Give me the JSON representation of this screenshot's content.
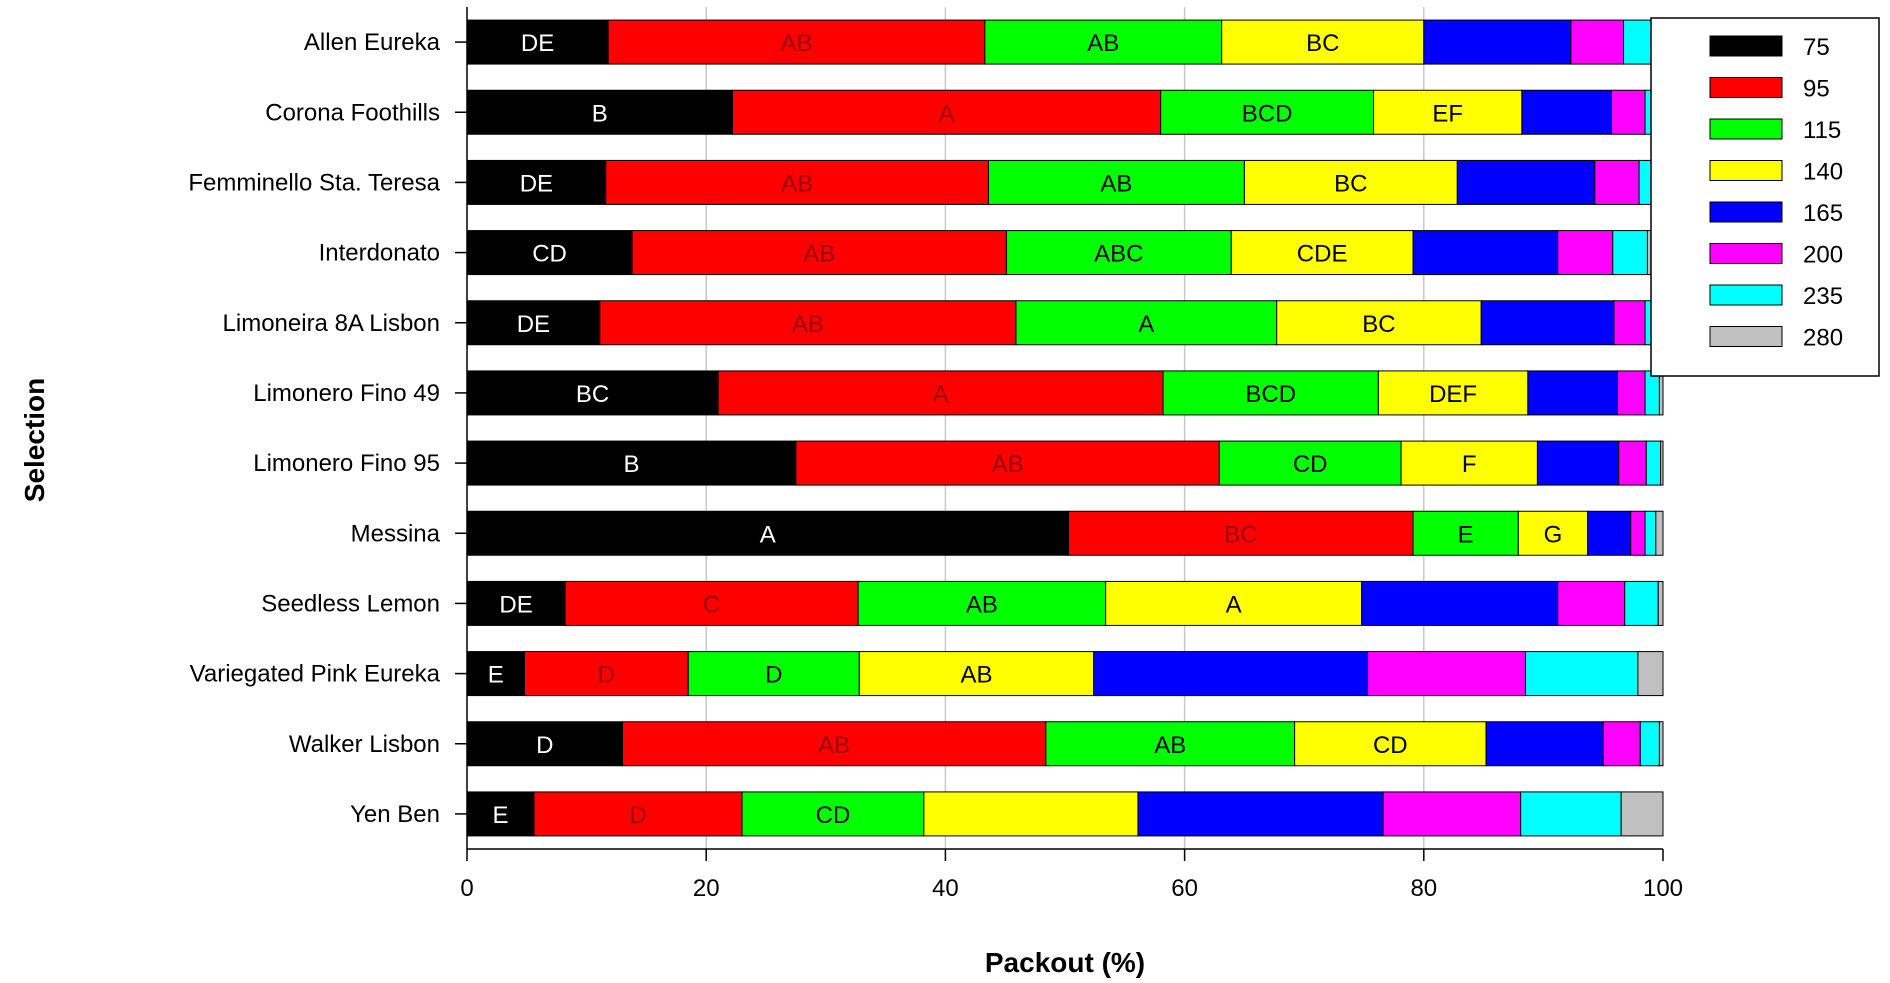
{
  "chart_data": {
    "type": "bar",
    "orientation": "horizontal",
    "stacked": true,
    "xlabel": "Packout (%)",
    "ylabel": "Selection",
    "xlim": [
      0,
      100
    ],
    "x_ticks": [
      0,
      20,
      40,
      60,
      80,
      100
    ],
    "grid": "vertical",
    "legend_position": "top-right",
    "categories": [
      "Allen Eureka",
      "Corona Foothills",
      "Femminello Sta. Teresa",
      "Interdonato",
      "Limoneira 8A Lisbon",
      "Limonero Fino 49",
      "Limonero Fino 95",
      "Messina",
      "Seedless Lemon",
      "Variegated Pink Eureka",
      "Walker Lisbon",
      "Yen Ben"
    ],
    "series": [
      {
        "name": "75",
        "color": "#000000",
        "label_color": "#ffffff",
        "values": [
          11.8,
          22.2,
          11.6,
          13.8,
          11.1,
          21.0,
          27.5,
          50.3,
          8.2,
          4.8,
          13.0,
          5.6
        ],
        "labels": [
          "DE",
          "B",
          "DE",
          "CD",
          "DE",
          "BC",
          "B",
          "A",
          "DE",
          "E",
          "D",
          "E"
        ]
      },
      {
        "name": "95",
        "color": "#ff0000",
        "label_color": "#990000",
        "values": [
          31.5,
          35.8,
          32.0,
          31.3,
          34.8,
          37.2,
          35.4,
          28.8,
          24.5,
          13.7,
          35.4,
          17.4
        ],
        "labels": [
          "AB",
          "A",
          "AB",
          "AB",
          "AB",
          "A",
          "AB",
          "BC",
          "C",
          "D",
          "AB",
          "D"
        ]
      },
      {
        "name": "115",
        "color": "#00ff00",
        "label_color": "#000000",
        "values": [
          19.8,
          17.8,
          21.4,
          18.8,
          21.8,
          18.0,
          15.2,
          8.8,
          20.7,
          14.3,
          20.8,
          15.2
        ],
        "labels": [
          "AB",
          "BCD",
          "AB",
          "ABC",
          "A",
          "BCD",
          "CD",
          "E",
          "AB",
          "D",
          "AB",
          "CD"
        ]
      },
      {
        "name": "140",
        "color": "#ffff00",
        "label_color": "#000000",
        "values": [
          16.9,
          12.4,
          17.8,
          15.2,
          17.1,
          12.5,
          11.4,
          5.8,
          21.4,
          19.6,
          16.0,
          17.9
        ],
        "labels": [
          "BC",
          "EF",
          "BC",
          "CDE",
          "BC",
          "DEF",
          "F",
          "G",
          "A",
          "AB",
          "CD",
          ""
        ]
      },
      {
        "name": "165",
        "color": "#0000ff",
        "label_color": "#ffffff",
        "values": [
          12.3,
          7.5,
          11.5,
          12.1,
          11.1,
          7.5,
          6.8,
          3.6,
          16.4,
          22.9,
          9.8,
          20.5
        ],
        "labels": [
          "",
          "",
          "",
          "",
          "",
          "",
          "",
          "",
          "",
          "",
          "",
          ""
        ]
      },
      {
        "name": "200",
        "color": "#ff00ff",
        "label_color": "#000000",
        "values": [
          4.4,
          2.8,
          3.7,
          4.6,
          2.6,
          2.3,
          2.3,
          1.2,
          5.6,
          13.2,
          3.1,
          11.5
        ],
        "labels": [
          "",
          "",
          "",
          "",
          "",
          "",
          "",
          "",
          "",
          "",
          "",
          ""
        ]
      },
      {
        "name": "235",
        "color": "#00ffff",
        "label_color": "#000000",
        "values": [
          2.6,
          1.4,
          1.7,
          2.9,
          1.3,
          1.2,
          1.2,
          0.9,
          2.8,
          9.4,
          1.6,
          8.4
        ],
        "labels": [
          "",
          "",
          "",
          "",
          "",
          "",
          "",
          "",
          "",
          "",
          "",
          ""
        ]
      },
      {
        "name": "280",
        "color": "#c0c0c0",
        "label_color": "#000000",
        "values": [
          0.7,
          0.1,
          0.3,
          1.3,
          0.2,
          0.3,
          0.2,
          0.6,
          0.4,
          2.1,
          0.3,
          3.5
        ],
        "labels": [
          "",
          "",
          "",
          "",
          "",
          "",
          "",
          "",
          "",
          "",
          "",
          ""
        ]
      }
    ]
  }
}
